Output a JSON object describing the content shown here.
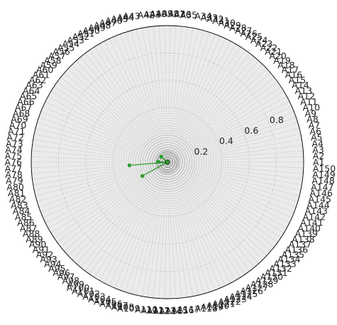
{
  "chart_data": {
    "type": "radar",
    "title": "",
    "categories_prefix": "A",
    "num_categories": 150,
    "categories_start_angle": "east",
    "categories_direction": "counterclockwise",
    "r_range": [
      0,
      1
    ],
    "r_ticks": [
      0.2,
      0.4,
      0.6,
      0.8
    ],
    "r_tick_labels": [
      "0.2",
      "0.4",
      "0.6",
      "0.8"
    ],
    "grid": true,
    "legend": "none",
    "series": [
      {
        "values_nonzero": [
          {
            "category": "A59",
            "value": 0.06
          },
          {
            "category": "A75",
            "value": 0.07
          },
          {
            "category": "A78",
            "value": 0.28
          },
          {
            "category": "A88",
            "value": 0.21
          }
        ],
        "other_values": 0.0,
        "color": "#2ca02c"
      }
    ],
    "colors": {
      "background": "#ebebeb",
      "grid": "#b0b0b0",
      "spine": "#000000",
      "line": "#2ca02c"
    }
  }
}
